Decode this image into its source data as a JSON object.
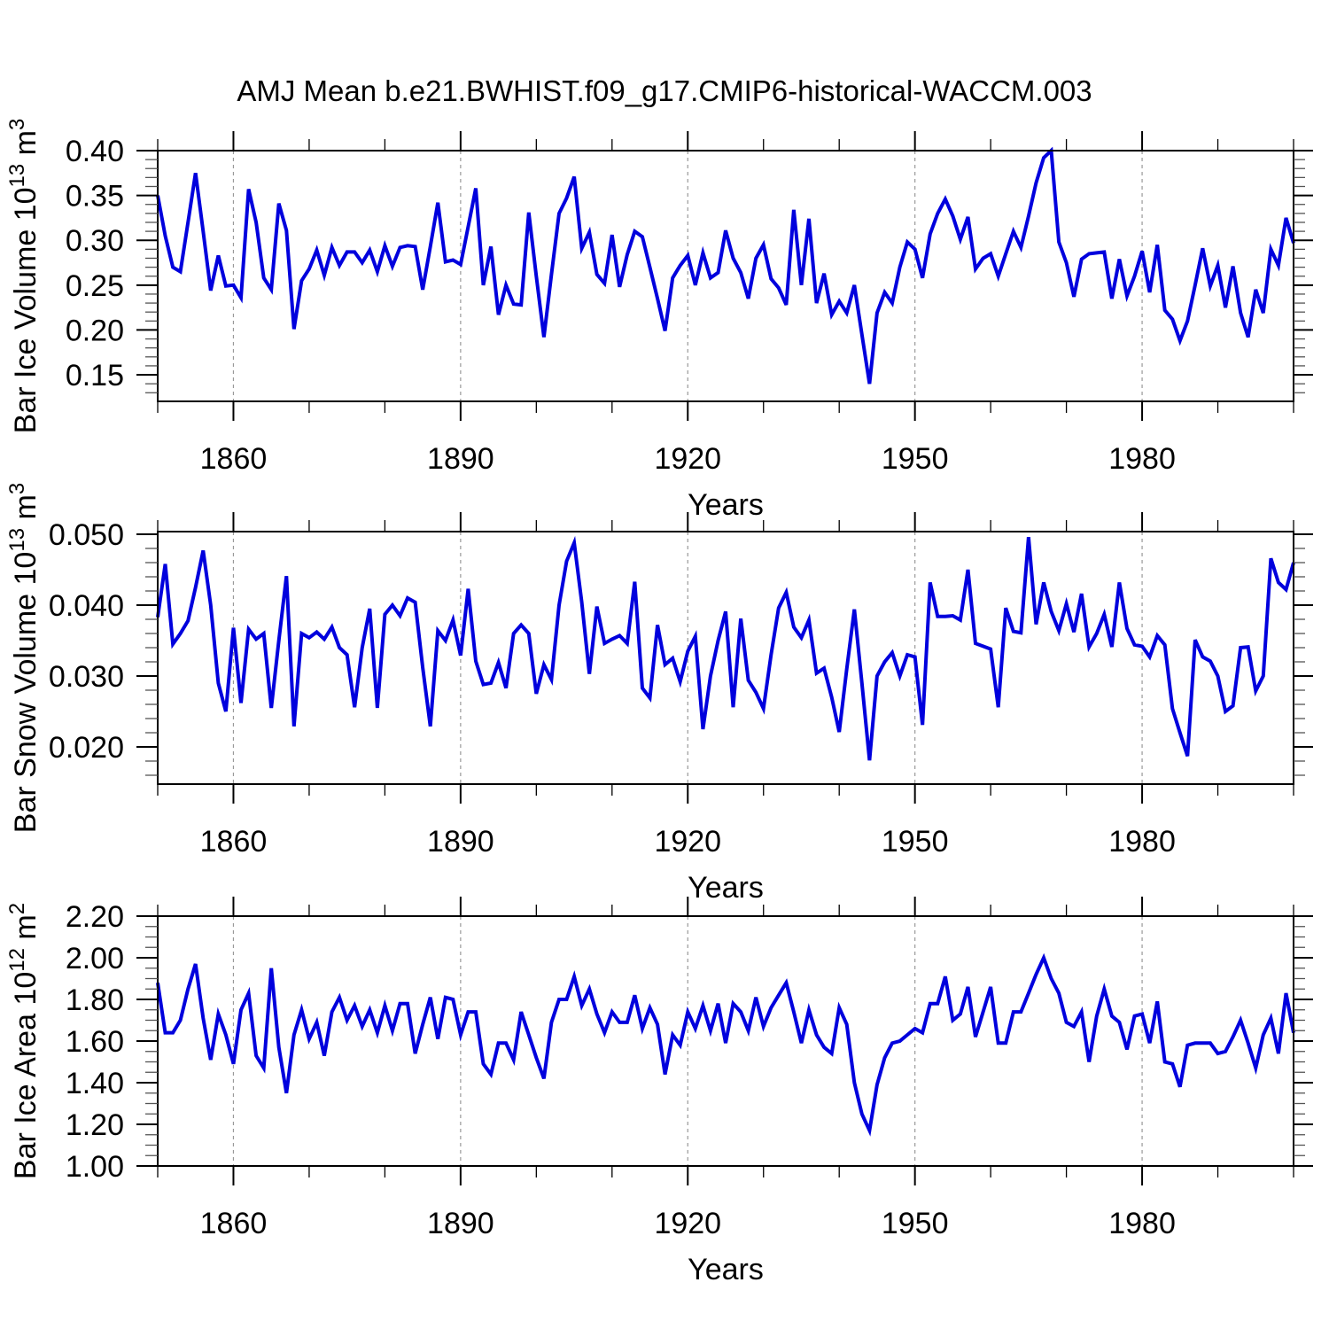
{
  "title": "AMJ Mean b.e21.BWHIST.f09_g17.CMIP6-historical-WACCM.003",
  "colors": {
    "line": "#0000dd",
    "grid": "#999999",
    "axis": "#000000",
    "text": "#000000"
  },
  "x_axis": {
    "label": "Years",
    "range": [
      1850,
      2000
    ],
    "major_ticks": [
      1860,
      1890,
      1920,
      1950,
      1980
    ],
    "minor_step": 10,
    "grid": "dashed"
  },
  "chart_data": [
    {
      "type": "line",
      "name": "bar-ice-volume",
      "ylabel": "Bar Ice Volume 10^13 m^3",
      "ylabel_parts": [
        {
          "text": "Bar Ice Volume 10",
          "sup": false
        },
        {
          "text": "13",
          "sup": true
        },
        {
          "text": " m",
          "sup": false
        },
        {
          "text": "3",
          "sup": true
        }
      ],
      "xlabel": "Years",
      "y_tick_labels": [
        "0.40",
        "0.35",
        "0.30",
        "0.25",
        "0.20",
        "0.15"
      ],
      "y_tick_values": [
        0.4,
        0.35,
        0.3,
        0.25,
        0.2,
        0.15
      ],
      "y_minor_step": 0.01,
      "ylim": [
        0.1204,
        0.4
      ],
      "x_start": 1850,
      "x_step": 1,
      "values": [
        0.35,
        0.305,
        0.27,
        0.265,
        0.32,
        0.375,
        0.31,
        0.244,
        0.283,
        0.249,
        0.25,
        0.236,
        0.357,
        0.32,
        0.258,
        0.245,
        0.341,
        0.311,
        0.201,
        0.255,
        0.268,
        0.289,
        0.261,
        0.292,
        0.272,
        0.287,
        0.287,
        0.275,
        0.289,
        0.265,
        0.294,
        0.271,
        0.292,
        0.294,
        0.293,
        0.245,
        0.293,
        0.342,
        0.276,
        0.278,
        0.273,
        0.315,
        0.358,
        0.25,
        0.293,
        0.217,
        0.25,
        0.229,
        0.228,
        0.331,
        0.26,
        0.192,
        0.262,
        0.33,
        0.347,
        0.371,
        0.291,
        0.309,
        0.262,
        0.252,
        0.306,
        0.248,
        0.284,
        0.31,
        0.304,
        0.27,
        0.235,
        0.199,
        0.258,
        0.272,
        0.283,
        0.25,
        0.286,
        0.258,
        0.264,
        0.311,
        0.28,
        0.264,
        0.235,
        0.28,
        0.295,
        0.257,
        0.247,
        0.228,
        0.334,
        0.25,
        0.324,
        0.23,
        0.263,
        0.217,
        0.232,
        0.219,
        0.25,
        0.195,
        0.14,
        0.219,
        0.242,
        0.23,
        0.27,
        0.298,
        0.29,
        0.258,
        0.307,
        0.33,
        0.346,
        0.327,
        0.301,
        0.326,
        0.268,
        0.28,
        0.285,
        0.26,
        0.285,
        0.31,
        0.292,
        0.327,
        0.364,
        0.392,
        0.4,
        0.298,
        0.275,
        0.237,
        0.279,
        0.285,
        0.286,
        0.287,
        0.235,
        0.279,
        0.238,
        0.26,
        0.288,
        0.242,
        0.295,
        0.222,
        0.212,
        0.188,
        0.21,
        0.25,
        0.291,
        0.249,
        0.272,
        0.225,
        0.271,
        0.219,
        0.192,
        0.245,
        0.219,
        0.29,
        0.272,
        0.325,
        0.297
      ]
    },
    {
      "type": "line",
      "name": "bar-snow-volume",
      "ylabel": "Bar Snow Volume 10^13 m^3",
      "ylabel_parts": [
        {
          "text": "Bar Snow Volume 10",
          "sup": false
        },
        {
          "text": "13",
          "sup": true
        },
        {
          "text": " m",
          "sup": false
        },
        {
          "text": "3",
          "sup": true
        }
      ],
      "xlabel": "Years",
      "y_tick_labels": [
        "0.050",
        "0.040",
        "0.030",
        "0.020"
      ],
      "y_tick_values": [
        0.05,
        0.04,
        0.03,
        0.02
      ],
      "y_minor_step": 0.002,
      "ylim": [
        0.01475,
        0.050375
      ],
      "x_start": 1850,
      "x_step": 1,
      "values": [
        0.0383,
        0.0458,
        0.0345,
        0.036,
        0.0378,
        0.0425,
        0.0477,
        0.04,
        0.029,
        0.025,
        0.0368,
        0.0262,
        0.0366,
        0.0352,
        0.036,
        0.0255,
        0.035,
        0.0441,
        0.0229,
        0.036,
        0.0354,
        0.0362,
        0.0352,
        0.0369,
        0.034,
        0.033,
        0.0256,
        0.034,
        0.0395,
        0.0255,
        0.0387,
        0.04,
        0.0385,
        0.041,
        0.0404,
        0.0312,
        0.0229,
        0.0364,
        0.035,
        0.0379,
        0.0329,
        0.0423,
        0.0321,
        0.0288,
        0.029,
        0.0319,
        0.0283,
        0.036,
        0.0372,
        0.036,
        0.0275,
        0.0316,
        0.0295,
        0.04,
        0.0462,
        0.0488,
        0.0404,
        0.0303,
        0.0398,
        0.0346,
        0.0352,
        0.0357,
        0.0346,
        0.0433,
        0.0283,
        0.0269,
        0.0372,
        0.0316,
        0.0325,
        0.0292,
        0.0335,
        0.0356,
        0.0225,
        0.03,
        0.035,
        0.0391,
        0.0256,
        0.0381,
        0.0294,
        0.0277,
        0.0254,
        0.033,
        0.0396,
        0.0418,
        0.0369,
        0.0354,
        0.0379,
        0.0304,
        0.0311,
        0.027,
        0.0221,
        0.031,
        0.0394,
        0.029,
        0.0181,
        0.03,
        0.032,
        0.0333,
        0.03,
        0.033,
        0.0327,
        0.0231,
        0.0432,
        0.0384,
        0.0384,
        0.0385,
        0.0379,
        0.045,
        0.0346,
        0.0342,
        0.0338,
        0.0256,
        0.0396,
        0.0363,
        0.0361,
        0.0496,
        0.0373,
        0.0432,
        0.0391,
        0.0364,
        0.0402,
        0.0362,
        0.0416,
        0.0341,
        0.036,
        0.0387,
        0.0341,
        0.0432,
        0.0367,
        0.0344,
        0.0342,
        0.0327,
        0.0357,
        0.0344,
        0.0254,
        0.022,
        0.0187,
        0.0351,
        0.0327,
        0.0321,
        0.03,
        0.025,
        0.0258,
        0.034,
        0.0341,
        0.0279,
        0.03,
        0.0466,
        0.0432,
        0.0422,
        0.046
      ]
    },
    {
      "type": "line",
      "name": "bar-ice-area",
      "ylabel": "Bar Ice Area 10^12 m^2",
      "ylabel_parts": [
        {
          "text": "Bar Ice Area 10",
          "sup": false
        },
        {
          "text": "12",
          "sup": true
        },
        {
          "text": " m",
          "sup": false
        },
        {
          "text": "2",
          "sup": true
        }
      ],
      "xlabel": "Years",
      "y_tick_labels": [
        "2.20",
        "2.00",
        "1.80",
        "1.60",
        "1.40",
        "1.20",
        "1.00"
      ],
      "y_tick_values": [
        2.2,
        2.0,
        1.8,
        1.6,
        1.4,
        1.2,
        1.0
      ],
      "y_minor_step": 0.05,
      "ylim": [
        1.0,
        2.2
      ],
      "x_start": 1850,
      "x_step": 1,
      "values": [
        1.88,
        1.64,
        1.64,
        1.7,
        1.85,
        1.97,
        1.71,
        1.51,
        1.73,
        1.63,
        1.49,
        1.75,
        1.83,
        1.53,
        1.47,
        1.95,
        1.57,
        1.35,
        1.63,
        1.75,
        1.61,
        1.69,
        1.53,
        1.74,
        1.81,
        1.7,
        1.77,
        1.67,
        1.75,
        1.64,
        1.77,
        1.65,
        1.78,
        1.78,
        1.54,
        1.68,
        1.81,
        1.61,
        1.81,
        1.8,
        1.63,
        1.74,
        1.74,
        1.49,
        1.44,
        1.59,
        1.59,
        1.51,
        1.74,
        1.63,
        1.52,
        1.42,
        1.69,
        1.8,
        1.8,
        1.91,
        1.77,
        1.85,
        1.73,
        1.64,
        1.74,
        1.69,
        1.69,
        1.82,
        1.66,
        1.76,
        1.68,
        1.44,
        1.63,
        1.58,
        1.74,
        1.66,
        1.77,
        1.65,
        1.78,
        1.59,
        1.78,
        1.74,
        1.65,
        1.81,
        1.67,
        1.76,
        1.82,
        1.88,
        1.74,
        1.59,
        1.75,
        1.63,
        1.57,
        1.54,
        1.76,
        1.68,
        1.4,
        1.25,
        1.17,
        1.39,
        1.52,
        1.59,
        1.6,
        1.63,
        1.66,
        1.64,
        1.78,
        1.78,
        1.91,
        1.7,
        1.73,
        1.86,
        1.62,
        1.74,
        1.86,
        1.59,
        1.59,
        1.74,
        1.74,
        1.83,
        1.92,
        2.0,
        1.9,
        1.83,
        1.69,
        1.67,
        1.74,
        1.5,
        1.72,
        1.85,
        1.72,
        1.69,
        1.56,
        1.72,
        1.73,
        1.59,
        1.79,
        1.5,
        1.49,
        1.38,
        1.58,
        1.59,
        1.59,
        1.59,
        1.54,
        1.55,
        1.62,
        1.7,
        1.59,
        1.47,
        1.63,
        1.71,
        1.54,
        1.83,
        1.64
      ]
    }
  ]
}
